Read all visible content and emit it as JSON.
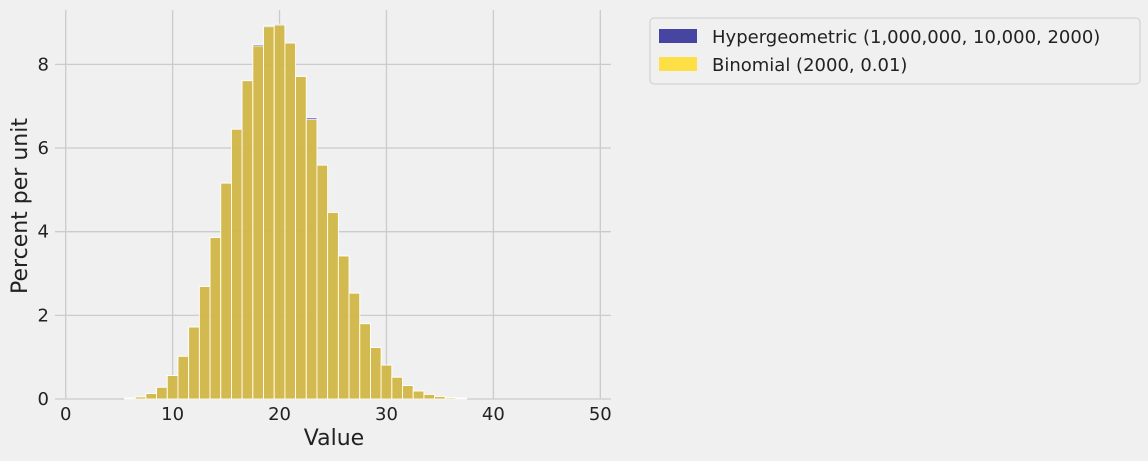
{
  "chart_data": {
    "type": "bar",
    "xlabel": "Value",
    "ylabel": "Percent per unit",
    "xlim": [
      -1,
      51
    ],
    "ylim": [
      0,
      9.3
    ],
    "xticks": [
      0,
      10,
      20,
      30,
      40,
      50
    ],
    "yticks": [
      0,
      2,
      4,
      6,
      8
    ],
    "grid": true,
    "legend_position": "outside-right-top",
    "bin_width": 1,
    "x": [
      5,
      6,
      7,
      8,
      9,
      10,
      11,
      12,
      13,
      14,
      15,
      16,
      17,
      18,
      19,
      20,
      21,
      22,
      23,
      24,
      25,
      26,
      27,
      28,
      29,
      30,
      31,
      32,
      33,
      34,
      35,
      36,
      37
    ],
    "series": [
      {
        "name": "Hypergeometric (1,000,000, 10,000, 2000)",
        "color": "#333399",
        "values": [
          0.0,
          0.02,
          0.05,
          0.13,
          0.28,
          0.56,
          1.02,
          1.72,
          2.69,
          3.86,
          5.16,
          6.45,
          7.61,
          8.47,
          8.92,
          8.96,
          8.51,
          7.72,
          6.72,
          5.59,
          4.46,
          3.42,
          2.53,
          1.8,
          1.23,
          0.81,
          0.52,
          0.32,
          0.19,
          0.11,
          0.06,
          0.03,
          0.02
        ]
      },
      {
        "name": "Binomial (2000, 0.01)",
        "color": "#ffdd33",
        "values": [
          0.0,
          0.02,
          0.05,
          0.13,
          0.28,
          0.56,
          1.02,
          1.72,
          2.69,
          3.86,
          5.16,
          6.45,
          7.61,
          8.44,
          8.9,
          8.94,
          8.51,
          7.71,
          6.68,
          5.59,
          4.46,
          3.42,
          2.53,
          1.8,
          1.23,
          0.81,
          0.52,
          0.32,
          0.19,
          0.11,
          0.06,
          0.03,
          0.02
        ]
      }
    ]
  }
}
